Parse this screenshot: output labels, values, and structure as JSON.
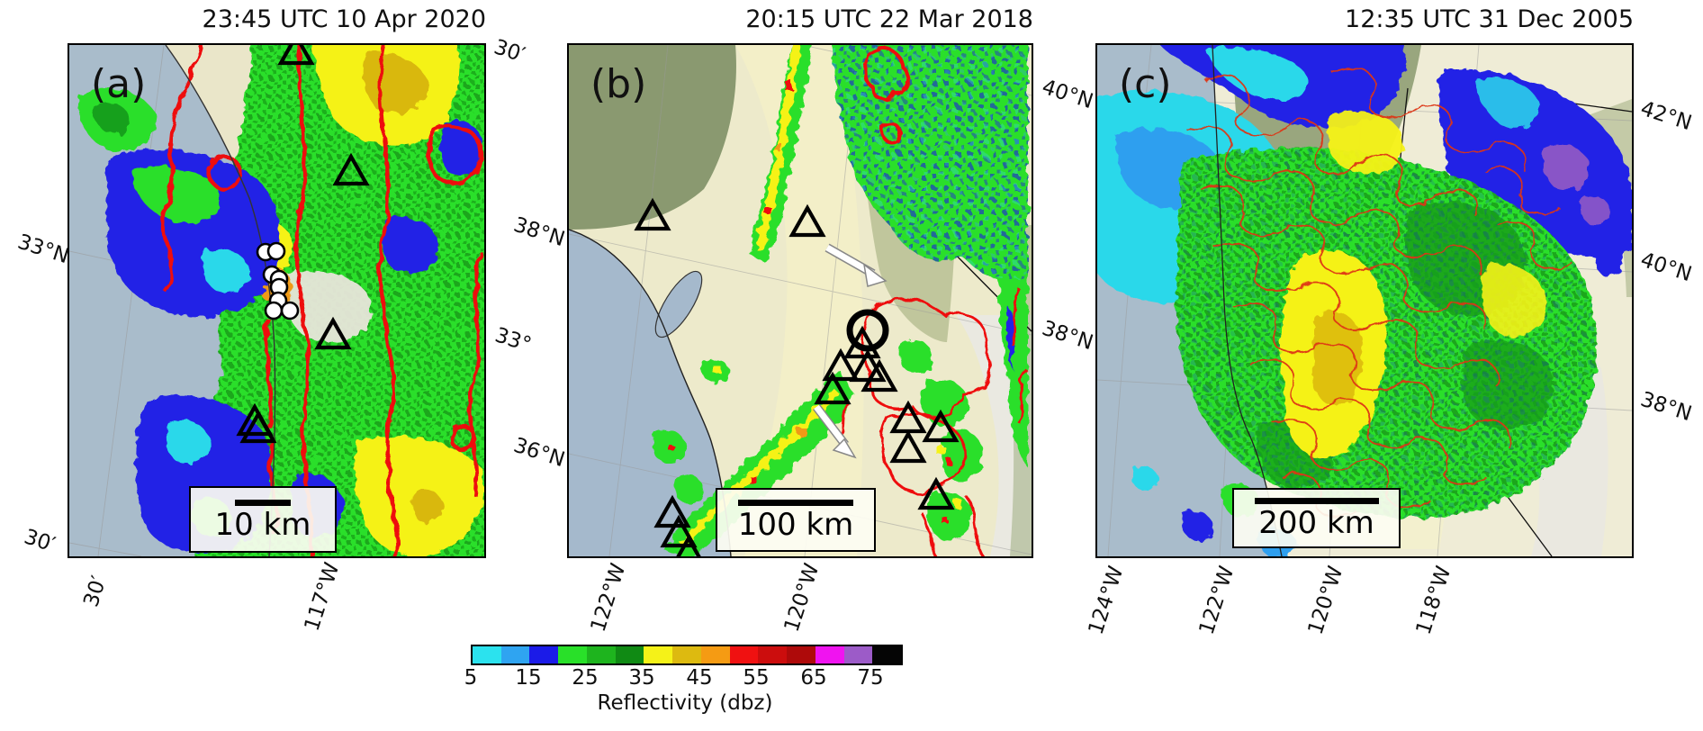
{
  "figure": {
    "panels": [
      {
        "letter": "(a)",
        "title": "23:45 UTC 10 Apr 2020",
        "scale_bar": "10 km",
        "ticks": {
          "left": [
            "33°N",
            "30′"
          ],
          "right": [
            "30′",
            "33°"
          ],
          "bottom": [
            "30′",
            "117°W"
          ]
        }
      },
      {
        "letter": "(b)",
        "title": "20:15 UTC 22 Mar 2018",
        "scale_bar": "100 km",
        "ticks": {
          "left": [
            "38°N",
            "36°N"
          ],
          "right": [
            "40°N",
            "38°N"
          ],
          "bottom": [
            "122°W",
            "120°W"
          ]
        }
      },
      {
        "letter": "(c)",
        "title": "12:35 UTC 31 Dec 2005",
        "scale_bar": "200 km",
        "ticks": {
          "right": [
            "42°N",
            "40°N",
            "38°N"
          ],
          "bottom": [
            "124°W",
            "122°W",
            "120°W",
            "118°W"
          ]
        }
      }
    ],
    "colorbar": {
      "label": "Reflectivity (dbz)",
      "ticks": [
        "5",
        "15",
        "25",
        "35",
        "45",
        "55",
        "65",
        "75"
      ],
      "colors": [
        "#2BE2EE",
        "#2FA4F1",
        "#1B1BE8",
        "#29E029",
        "#1EB41E",
        "#108A14",
        "#F5F218",
        "#DDBA10",
        "#F59B13",
        "#F01111",
        "#CC0D0D",
        "#AE0A0A",
        "#F013F0",
        "#9C5BC8",
        "#050505"
      ]
    },
    "palette": {
      "ocean": "#A9BCCB",
      "land": "#EDEACB",
      "contour_red": "#EE1111"
    }
  }
}
